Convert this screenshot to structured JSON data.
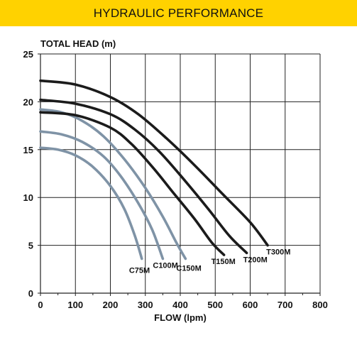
{
  "header": {
    "title": "HYDRAULIC PERFORMANCE"
  },
  "chart_data": {
    "type": "line",
    "title": "",
    "xlabel": "FLOW (lpm)",
    "ylabel": "TOTAL HEAD (m)",
    "xlim": [
      0,
      800
    ],
    "ylim": [
      0,
      25
    ],
    "xticks": [
      0,
      100,
      200,
      300,
      400,
      500,
      600,
      700,
      800
    ],
    "yticks": [
      0,
      5,
      10,
      15,
      20,
      25
    ],
    "grid": true,
    "colors": {
      "T": "#1b1b1b",
      "C": "#7f93a6",
      "banner": "#ffd200"
    },
    "series": [
      {
        "name": "C75M",
        "family": "C",
        "points": [
          [
            0,
            15.2
          ],
          [
            50,
            15.0
          ],
          [
            100,
            14.4
          ],
          [
            150,
            13.2
          ],
          [
            200,
            11.2
          ],
          [
            240,
            8.8
          ],
          [
            270,
            6.0
          ],
          [
            290,
            3.6
          ]
        ]
      },
      {
        "name": "C100M",
        "family": "C",
        "points": [
          [
            0,
            16.9
          ],
          [
            60,
            16.6
          ],
          [
            120,
            15.8
          ],
          [
            180,
            14.3
          ],
          [
            230,
            12.2
          ],
          [
            280,
            9.4
          ],
          [
            320,
            6.6
          ],
          [
            350,
            3.6
          ]
        ]
      },
      {
        "name": "C150M",
        "family": "C",
        "points": [
          [
            0,
            19.2
          ],
          [
            60,
            18.9
          ],
          [
            120,
            18.0
          ],
          [
            180,
            16.4
          ],
          [
            240,
            14.0
          ],
          [
            300,
            11.0
          ],
          [
            350,
            8.0
          ],
          [
            390,
            5.2
          ],
          [
            415,
            3.6
          ]
        ]
      },
      {
        "name": "T150M",
        "family": "T",
        "points": [
          [
            0,
            18.9
          ],
          [
            100,
            18.6
          ],
          [
            200,
            17.3
          ],
          [
            260,
            15.6
          ],
          [
            320,
            13.2
          ],
          [
            380,
            10.5
          ],
          [
            440,
            7.8
          ],
          [
            490,
            5.3
          ],
          [
            525,
            4.0
          ]
        ]
      },
      {
        "name": "T200M",
        "family": "T",
        "points": [
          [
            0,
            20.2
          ],
          [
            100,
            19.8
          ],
          [
            200,
            18.7
          ],
          [
            270,
            17.1
          ],
          [
            340,
            14.8
          ],
          [
            410,
            11.9
          ],
          [
            480,
            8.8
          ],
          [
            540,
            6.0
          ],
          [
            590,
            4.2
          ]
        ]
      },
      {
        "name": "T300M",
        "family": "T",
        "points": [
          [
            0,
            22.2
          ],
          [
            100,
            21.8
          ],
          [
            200,
            20.5
          ],
          [
            280,
            18.7
          ],
          [
            360,
            16.2
          ],
          [
            440,
            13.4
          ],
          [
            520,
            10.4
          ],
          [
            600,
            7.4
          ],
          [
            650,
            5.0
          ]
        ]
      }
    ]
  }
}
